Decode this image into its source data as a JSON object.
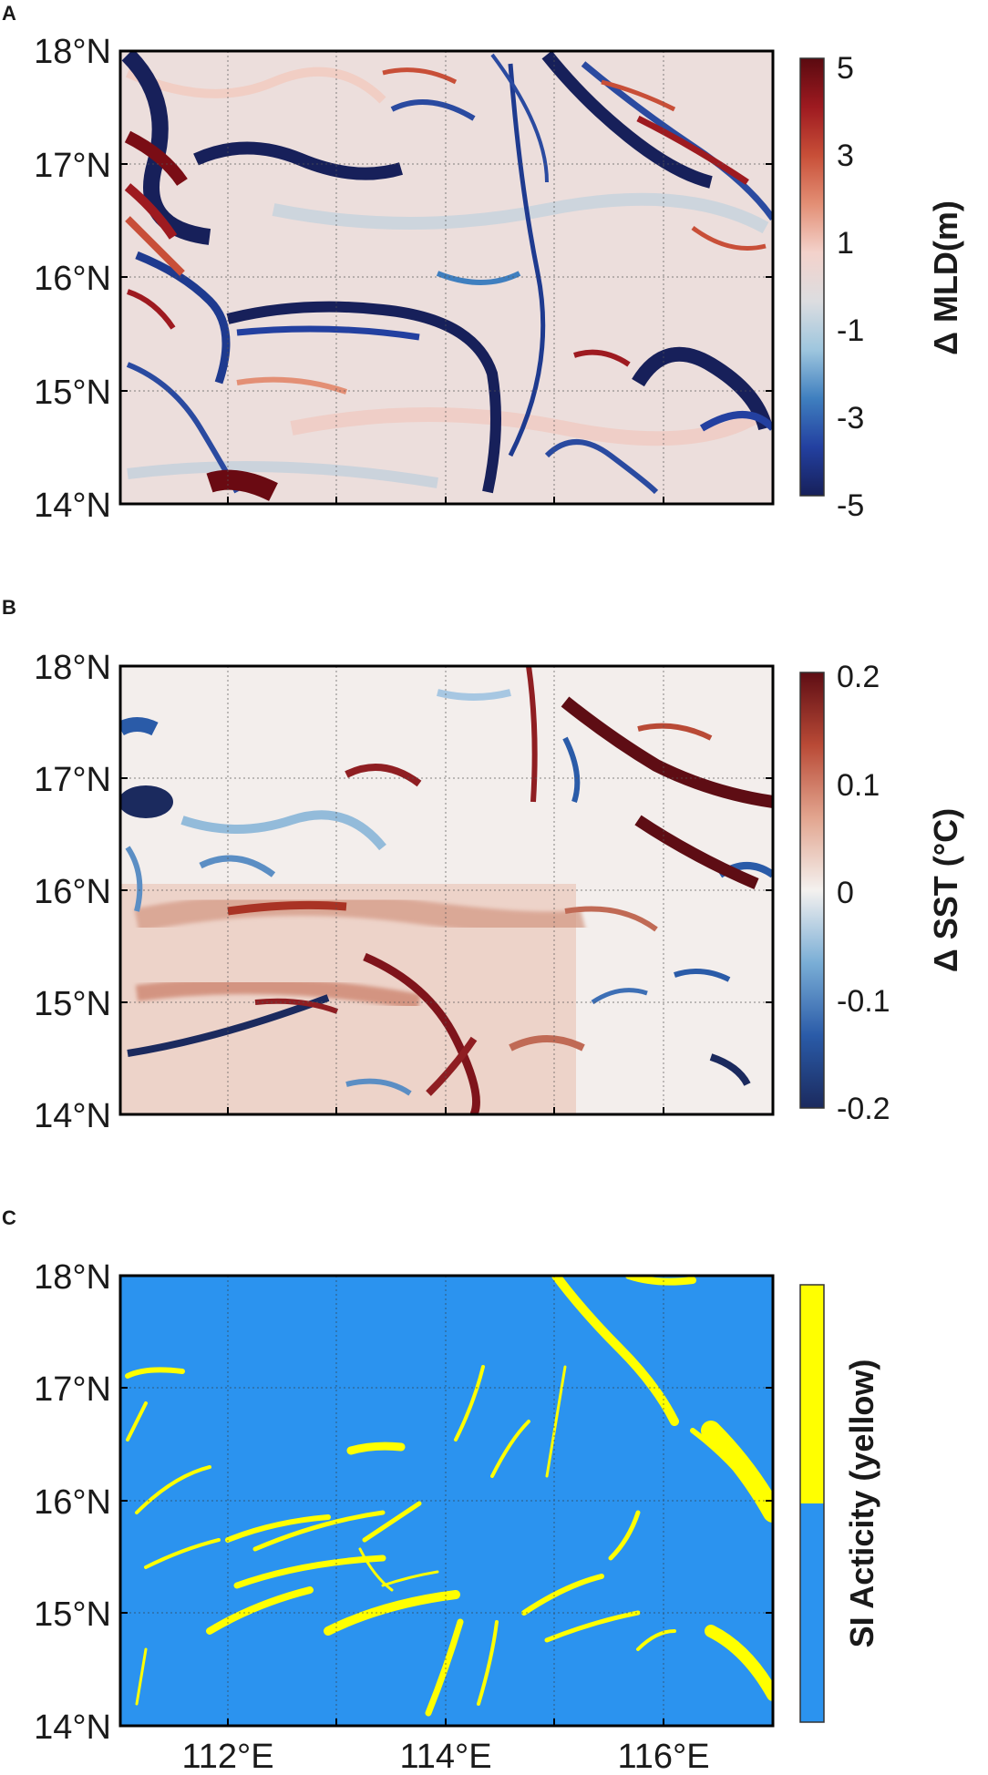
{
  "chart_data": [
    {
      "type": "heatmap",
      "panel_label": "A",
      "title": "",
      "xlabel": "",
      "ylabel": "",
      "colorbar_label": "Δ MLD(m)",
      "xlim": [
        111,
        117
      ],
      "ylim": [
        14,
        18
      ],
      "yticks": [
        "14°N",
        "15°N",
        "16°N",
        "17°N",
        "18°N"
      ],
      "xticks": [],
      "colorbar_ticks": [
        "-5",
        "-3",
        "-1",
        "1",
        "3",
        "5"
      ],
      "colorbar_range": [
        -5,
        5
      ],
      "colors": [
        "#17205a",
        "#2340a0",
        "#3f7fbf",
        "#9ec6de",
        "#dcdde0",
        "#f3d2cb",
        "#e38f75",
        "#c84f38",
        "#9e1a20",
        "#5a0a10"
      ],
      "grid": true
    },
    {
      "type": "heatmap",
      "panel_label": "B",
      "title": "",
      "xlabel": "",
      "ylabel": "",
      "colorbar_label": "Δ SST (°C)",
      "xlim": [
        111,
        117
      ],
      "ylim": [
        14,
        18
      ],
      "yticks": [
        "14°N",
        "15°N",
        "16°N",
        "17°N",
        "18°N"
      ],
      "xticks": [],
      "colorbar_ticks": [
        "-0.2",
        "-0.1",
        "0",
        "0.1",
        "0.2"
      ],
      "colorbar_range": [
        -0.2,
        0.2
      ],
      "colors": [
        "#1b2a5e",
        "#2a5ba8",
        "#7aaed6",
        "#f4f1ef",
        "#e2a58f",
        "#b94a36",
        "#5e0d14"
      ],
      "grid": true
    },
    {
      "type": "heatmap",
      "panel_label": "C",
      "title": "",
      "xlabel": "",
      "ylabel": "",
      "colorbar_label": "SI Acticity (yellow)",
      "xlim": [
        111,
        117
      ],
      "ylim": [
        14,
        18
      ],
      "yticks": [
        "14°N",
        "15°N",
        "16°N",
        "17°N",
        "18°N"
      ],
      "xticks": [
        "112°E",
        "114°E",
        "116°E"
      ],
      "colorbar_ticks": [],
      "colors": [
        "#2b93ef",
        "#ffff00"
      ],
      "grid": true
    }
  ]
}
